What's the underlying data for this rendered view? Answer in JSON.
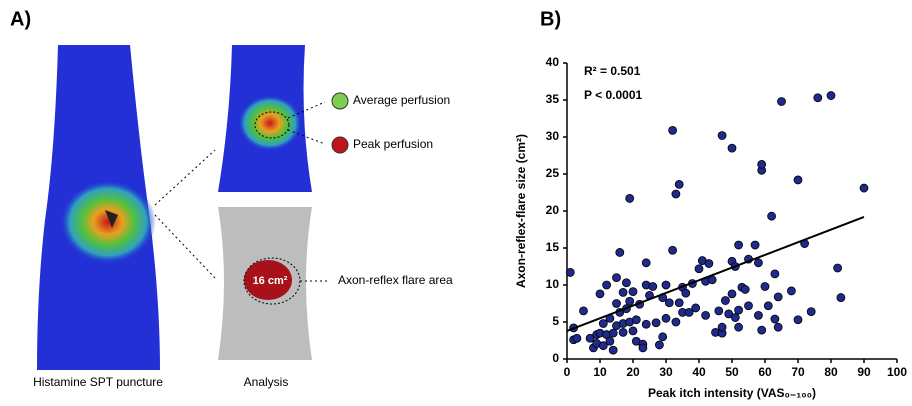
{
  "panel_a": {
    "label": "A)",
    "average": "Average perfusion",
    "peak": "Peak perfusion",
    "area_value": "16 cm²",
    "flare": "Axon-reflex flare area",
    "caption_left": "Histamine SPT puncture",
    "caption_right": "Analysis"
  },
  "chart_data": {
    "type": "scatter",
    "label": "B)",
    "x_label": "Peak itch intensity (VAS₀₋₁₀₀)",
    "y_label": "Axon-reflex-flare size (cm²)",
    "annotations": [
      "R² = 0.501",
      "P < 0.0001"
    ],
    "color": "#1f2a8c",
    "xlim": [
      0,
      100
    ],
    "xticks": [
      0,
      10,
      20,
      30,
      40,
      50,
      60,
      70,
      80,
      90,
      100
    ],
    "ylim": [
      0,
      40
    ],
    "yticks": [
      0,
      5,
      10,
      15,
      20,
      25,
      30,
      35,
      40
    ],
    "x": [
      1,
      2,
      2,
      3,
      5,
      7,
      8,
      9,
      9,
      10,
      10,
      11,
      11,
      12,
      12,
      13,
      13,
      14,
      14,
      15,
      15,
      15,
      16,
      16,
      17,
      17,
      17,
      18,
      18,
      19,
      19,
      19,
      20,
      20,
      21,
      21,
      22,
      23,
      23,
      24,
      24,
      24,
      25,
      26,
      27,
      28,
      29,
      29,
      30,
      30,
      31,
      32,
      32,
      33,
      33,
      34,
      34,
      35,
      35,
      36,
      37,
      38,
      39,
      40,
      41,
      42,
      42,
      43,
      44,
      45,
      46,
      47,
      47,
      47,
      48,
      49,
      50,
      50,
      50,
      51,
      51,
      52,
      52,
      52,
      53,
      54,
      55,
      55,
      57,
      58,
      58,
      59,
      59,
      59,
      60,
      61,
      62,
      63,
      63,
      64,
      64,
      65,
      68,
      70,
      70,
      72,
      74,
      76,
      80,
      82,
      83,
      90
    ],
    "values": [
      11.7,
      4.2,
      2.6,
      2.8,
      6.5,
      2.8,
      1.5,
      3.3,
      2.1,
      3.5,
      8.8,
      4.8,
      1.8,
      3.3,
      10,
      5.5,
      2.4,
      1.2,
      3.5,
      4.5,
      7.5,
      11,
      14.4,
      6.3,
      4.8,
      9,
      3.6,
      6.8,
      10.3,
      5,
      7.8,
      21.7,
      9.1,
      3.8,
      5.3,
      2.4,
      7.4,
      2,
      1.5,
      4.7,
      10,
      13,
      8.6,
      9.8,
      4.9,
      1.9,
      3,
      8.3,
      10,
      5.5,
      7.6,
      14.7,
      30.9,
      22.3,
      5,
      23.6,
      7.6,
      9.7,
      6.3,
      8.9,
      6.3,
      10.2,
      6.9,
      12.2,
      13.3,
      5.9,
      10.5,
      12.9,
      10.7,
      3.6,
      6.5,
      30.2,
      3.5,
      4.3,
      7.9,
      6.1,
      28.5,
      13.2,
      8.8,
      5.6,
      12.5,
      15.4,
      6.6,
      4.3,
      9.7,
      9.4,
      13.5,
      7.2,
      15.4,
      5.9,
      13,
      25.5,
      26.3,
      3.9,
      9.8,
      7.2,
      19.3,
      11.5,
      5.4,
      8.4,
      4.3,
      34.8,
      9.2,
      24.2,
      5.3,
      15.6,
      6.4,
      35.3,
      35.6,
      12.3,
      8.3,
      23.1
    ],
    "fit": {
      "x": [
        0,
        90
      ],
      "values": [
        3.8,
        19.2
      ]
    }
  }
}
